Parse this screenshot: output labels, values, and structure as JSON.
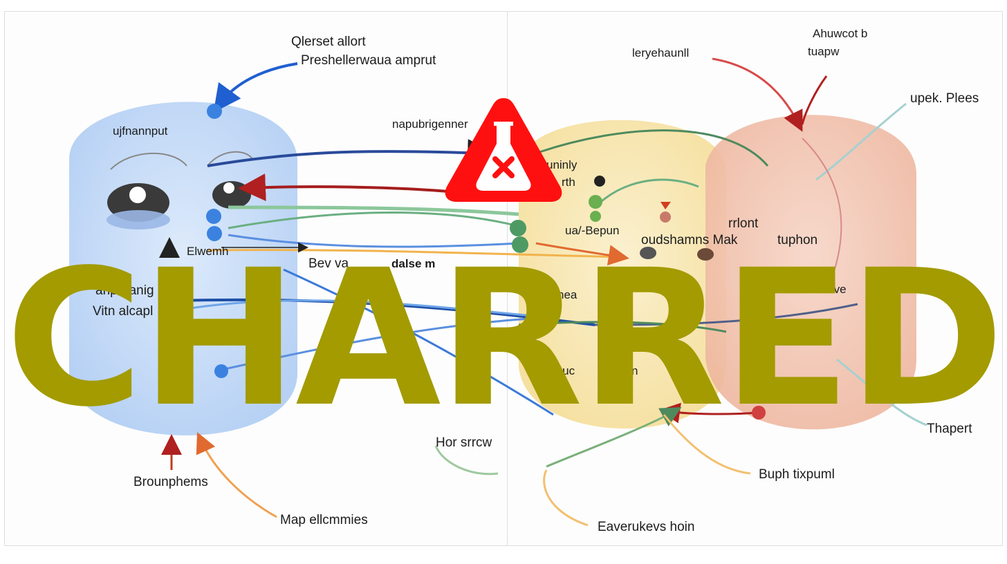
{
  "labels": {
    "top_left_1": "Qlerset allort",
    "top_left_2": "Preshellerwaua amprut",
    "blob_left_title": "ujfnannput",
    "mid_top": "napubrigenner",
    "elwemh": "Elwemh",
    "bev": "Bev va",
    "dalse": "dalse m",
    "left_prerig": "anpreanig",
    "left_vitn": "Vitn alcapl",
    "bottom_left": "Brounphems",
    "bottom_left_2": "Map ellcmmies",
    "hor_srcw": "Hor srrcw",
    "right_top_1": "leryehaunll",
    "right_top_2_a": "Ahuwcot b",
    "right_top_2_b": "tuapw",
    "right_top_3": "upek. Plees",
    "mid_right_a": "uninly",
    "mid_right_b": "rth",
    "ua_bepun": "ua/-Bepun",
    "rrlont": "rrlont",
    "oudshamns": "oudshamns Mak",
    "tuphon": "tuphon",
    "nea": "nea",
    "salve": "Salve",
    "tuuc": "tuuc",
    "con": "con",
    "thapert": "Thapert",
    "buph": "Buph tixpuml",
    "everukevs": "Eaverukevs hoin"
  },
  "watermark": "CHARRED",
  "colors": {
    "blue_region": "#bcd6f7",
    "yellow_region": "#f8e6ac",
    "red_region": "#f1c0aa",
    "watermark": "#a39b00",
    "warning": "#ff1010"
  }
}
